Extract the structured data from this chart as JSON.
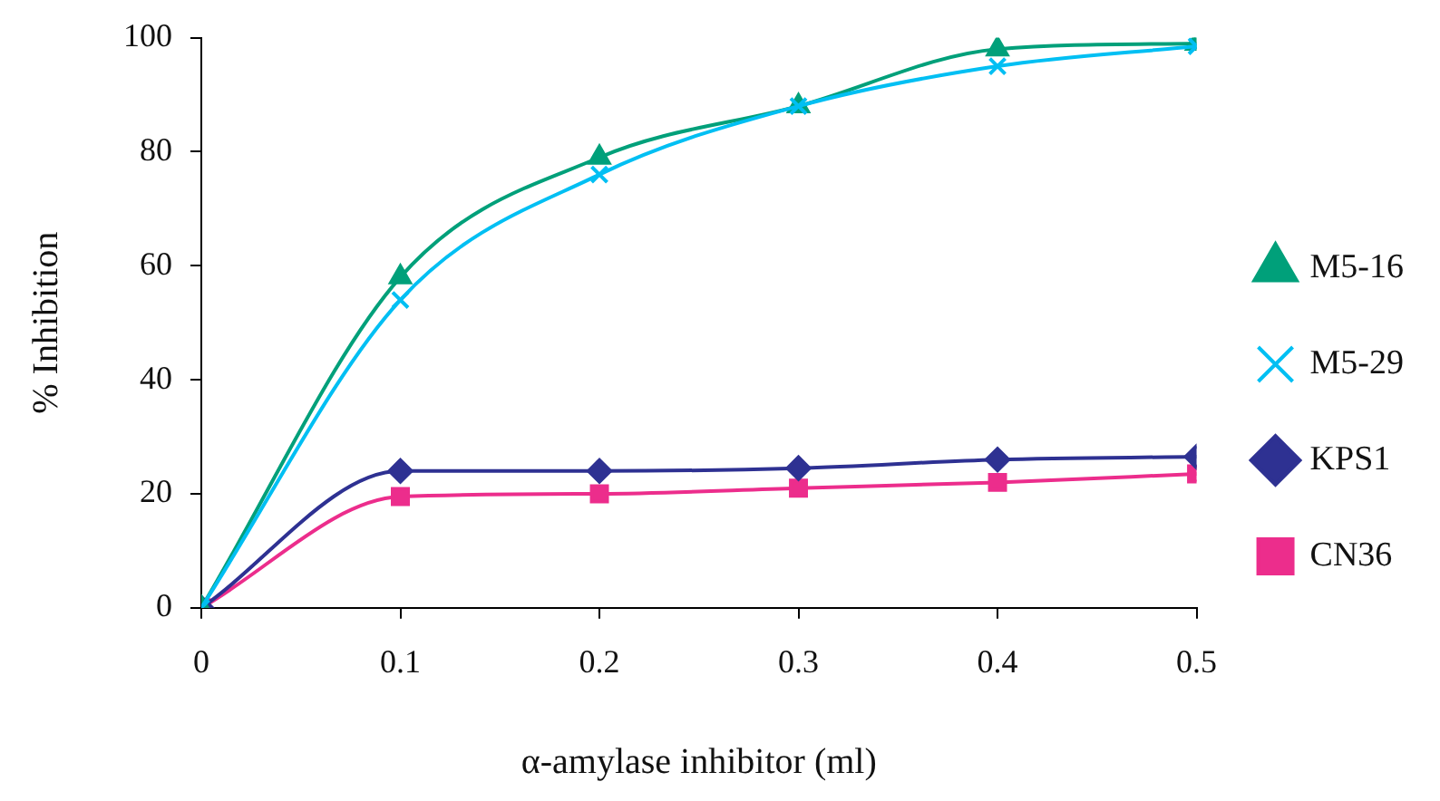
{
  "chart_data": {
    "type": "line",
    "xlabel": "α-amylase inhibitor (ml)",
    "ylabel": "% Inhibition",
    "x": [
      0,
      0.1,
      0.2,
      0.3,
      0.4,
      0.5
    ],
    "xlim": [
      0,
      0.5
    ],
    "xticks": [
      0,
      0.1,
      0.2,
      0.3,
      0.4,
      0.5
    ],
    "ylim": [
      0,
      100
    ],
    "yticks": [
      0,
      20,
      40,
      60,
      80,
      100
    ],
    "grid": false,
    "legend": "right",
    "line_style": "solid",
    "series": [
      {
        "name": "M5-16",
        "color": "#00a07a",
        "marker": "triangle",
        "values": [
          0,
          58,
          79,
          88,
          98,
          99
        ]
      },
      {
        "name": "M5-29",
        "color": "#00bff3",
        "marker": "cross",
        "values": [
          0,
          54,
          76,
          88,
          95,
          98.5
        ]
      },
      {
        "name": "KPS1",
        "color": "#2e3192",
        "marker": "diamond",
        "values": [
          0,
          24,
          24,
          24.5,
          26,
          26.5
        ]
      },
      {
        "name": "CN36",
        "color": "#ec2d8c",
        "marker": "square",
        "values": [
          0,
          19.5,
          20,
          21,
          22,
          23.5
        ]
      }
    ]
  }
}
